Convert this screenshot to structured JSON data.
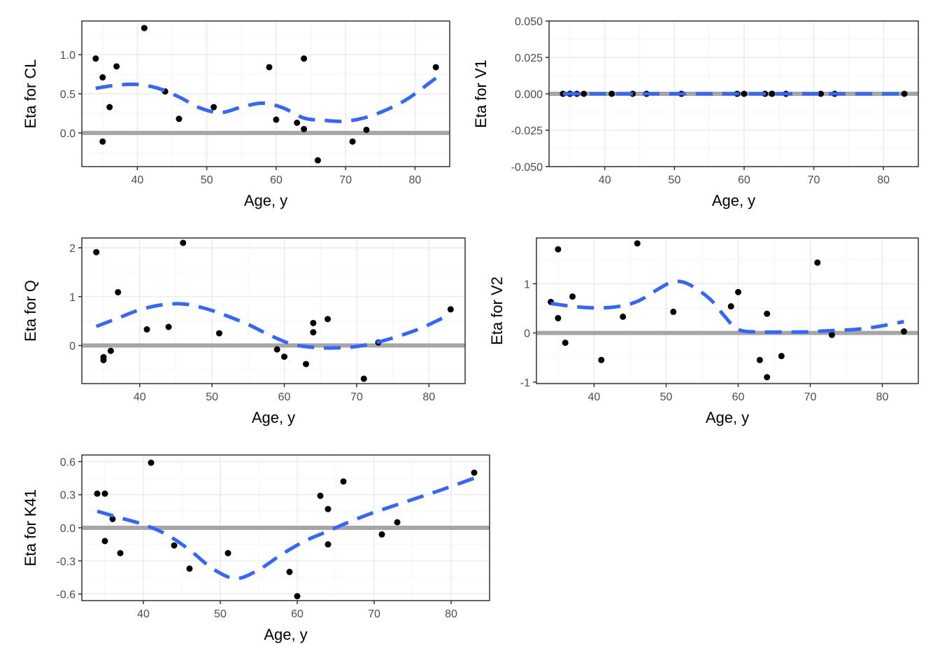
{
  "chart_data": [
    {
      "type": "scatter",
      "xlabel": "Age, y",
      "ylabel": "Eta for CL",
      "xlim": [
        32,
        85
      ],
      "ylim": [
        -0.43,
        1.43
      ],
      "xticks": [
        40,
        50,
        60,
        70,
        80
      ],
      "yticks": [
        0.0,
        0.5,
        1.0
      ],
      "ytick_labels": [
        "0.0",
        "0.5",
        "1.0"
      ],
      "points": {
        "x": [
          34,
          35,
          35,
          36,
          37,
          41,
          44,
          46,
          51,
          59,
          60,
          63,
          64,
          64,
          66,
          71,
          73,
          83
        ],
        "y": [
          0.95,
          0.71,
          -0.11,
          0.33,
          0.85,
          1.34,
          0.53,
          0.18,
          0.33,
          0.84,
          0.17,
          0.13,
          0.05,
          0.95,
          -0.35,
          -0.11,
          0.04,
          0.84
        ]
      },
      "smooth": {
        "x": [
          34,
          37,
          40,
          43,
          46,
          49,
          52,
          55,
          58,
          61,
          64,
          67,
          70,
          73,
          76,
          79,
          83
        ],
        "y": [
          0.57,
          0.61,
          0.62,
          0.57,
          0.46,
          0.32,
          0.26,
          0.33,
          0.38,
          0.32,
          0.19,
          0.16,
          0.15,
          0.2,
          0.3,
          0.44,
          0.7
        ]
      },
      "reference_line": 0
    },
    {
      "type": "scatter",
      "xlabel": "Age, y",
      "ylabel": "Eta for V1",
      "xlim": [
        32,
        85
      ],
      "ylim": [
        -0.05,
        0.05
      ],
      "xticks": [
        40,
        50,
        60,
        70,
        80
      ],
      "yticks": [
        -0.05,
        -0.025,
        0.0,
        0.025,
        0.05
      ],
      "ytick_labels": [
        "-0.050",
        "-0.025",
        "0.000",
        "0.025",
        "0.050"
      ],
      "points": {
        "x": [
          34,
          35,
          35,
          36,
          37,
          41,
          44,
          46,
          51,
          59,
          60,
          63,
          64,
          64,
          66,
          71,
          73,
          83
        ],
        "y": [
          0,
          0,
          0,
          0,
          0,
          0,
          0,
          0,
          0,
          0,
          0,
          0,
          0,
          0,
          0,
          0,
          0,
          0
        ]
      },
      "smooth": {
        "x": [
          34,
          83
        ],
        "y": [
          0,
          0
        ]
      },
      "reference_line": 0
    },
    {
      "type": "scatter",
      "xlabel": "Age, y",
      "ylabel": "Eta for Q",
      "xlim": [
        32,
        85
      ],
      "ylim": [
        -0.78,
        2.2
      ],
      "xticks": [
        40,
        50,
        60,
        70,
        80
      ],
      "yticks": [
        0,
        1,
        2
      ],
      "ytick_labels": [
        "0",
        "1",
        "2"
      ],
      "points": {
        "x": [
          34,
          35,
          35,
          36,
          37,
          41,
          44,
          46,
          51,
          59,
          60,
          63,
          64,
          64,
          66,
          71,
          73,
          83
        ],
        "y": [
          1.91,
          -0.24,
          -0.3,
          -0.11,
          1.09,
          0.33,
          0.38,
          2.1,
          0.25,
          -0.08,
          -0.23,
          -0.38,
          0.46,
          0.27,
          0.54,
          -0.68,
          0.06,
          0.74
        ]
      },
      "smooth": {
        "x": [
          34,
          37,
          40,
          43,
          46,
          49,
          52,
          55,
          58,
          61,
          64,
          67,
          70,
          73,
          76,
          79,
          83
        ],
        "y": [
          0.39,
          0.56,
          0.73,
          0.83,
          0.85,
          0.76,
          0.61,
          0.43,
          0.21,
          0.03,
          -0.04,
          -0.05,
          -0.02,
          0.07,
          0.2,
          0.36,
          0.64
        ]
      },
      "reference_line": 0
    },
    {
      "type": "scatter",
      "xlabel": "Age, y",
      "ylabel": "Eta for V2",
      "xlim": [
        32,
        85
      ],
      "ylim": [
        -1.03,
        1.93
      ],
      "xticks": [
        40,
        50,
        60,
        70,
        80
      ],
      "yticks": [
        -1,
        0,
        1
      ],
      "ytick_labels": [
        "-1",
        "0",
        "1"
      ],
      "points": {
        "x": [
          34,
          35,
          35,
          36,
          37,
          41,
          44,
          46,
          51,
          59,
          60,
          63,
          64,
          64,
          66,
          71,
          73,
          83
        ],
        "y": [
          0.63,
          1.7,
          0.3,
          -0.2,
          0.74,
          -0.55,
          0.33,
          1.82,
          0.43,
          0.54,
          0.83,
          -0.55,
          0.39,
          -0.9,
          -0.47,
          1.43,
          -0.04,
          0.03
        ]
      },
      "smooth": {
        "x": [
          34,
          37,
          40,
          43,
          46,
          49,
          51,
          53,
          56,
          58,
          60,
          63,
          66,
          69,
          72,
          76,
          79,
          83
        ],
        "y": [
          0.6,
          0.54,
          0.51,
          0.53,
          0.64,
          0.9,
          1.04,
          1.0,
          0.7,
          0.36,
          0.07,
          0.02,
          0.02,
          0.02,
          0.04,
          0.07,
          0.12,
          0.23
        ]
      },
      "reference_line": 0
    },
    {
      "type": "scatter",
      "xlabel": "Age, y",
      "ylabel": "Eta for K41",
      "xlim": [
        32,
        85
      ],
      "ylim": [
        -0.66,
        0.66
      ],
      "xticks": [
        40,
        50,
        60,
        70,
        80
      ],
      "yticks": [
        -0.6,
        -0.3,
        0.0,
        0.3,
        0.6
      ],
      "ytick_labels": [
        "-0.6",
        "-0.3",
        "0.0",
        "0.3",
        "0.6"
      ],
      "points": {
        "x": [
          34,
          35,
          35,
          36,
          37,
          41,
          44,
          46,
          51,
          59,
          60,
          63,
          64,
          64,
          66,
          71,
          73,
          83
        ],
        "y": [
          0.31,
          0.31,
          -0.12,
          0.08,
          -0.23,
          0.59,
          -0.16,
          -0.37,
          -0.23,
          -0.4,
          -0.62,
          0.29,
          0.17,
          -0.15,
          0.42,
          -0.06,
          0.05,
          0.5
        ]
      },
      "smooth": {
        "x": [
          34,
          37,
          40,
          43,
          46,
          49,
          52,
          55,
          58,
          61,
          64,
          67,
          70,
          73,
          76,
          79,
          83
        ],
        "y": [
          0.15,
          0.09,
          0.03,
          -0.06,
          -0.2,
          -0.37,
          -0.46,
          -0.38,
          -0.24,
          -0.12,
          -0.03,
          0.06,
          0.14,
          0.21,
          0.28,
          0.35,
          0.45
        ]
      },
      "reference_line": 0
    }
  ],
  "colors": {
    "points": "#000000",
    "smooth_line": "#3366FF",
    "reference_line": "#A6A6A6",
    "grid_major": "#EBEBEB",
    "grid_minor": "#F5F5F5",
    "panel_border": "#333333",
    "tick_label": "#4D4D4D"
  },
  "grid": true,
  "panel_border": true
}
